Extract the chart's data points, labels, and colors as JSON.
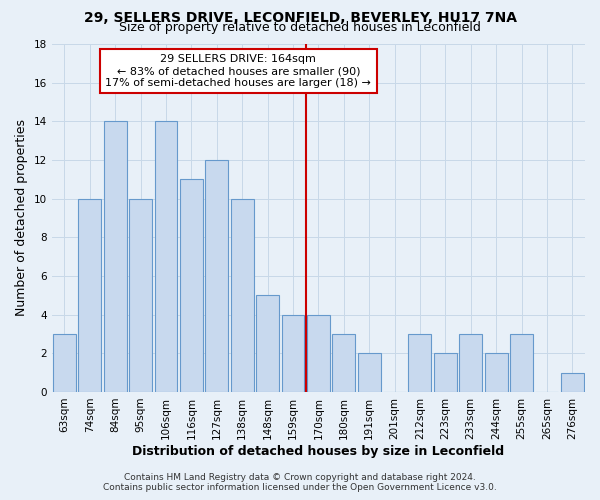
{
  "title": "29, SELLERS DRIVE, LECONFIELD, BEVERLEY, HU17 7NA",
  "subtitle": "Size of property relative to detached houses in Leconfield",
  "xlabel": "Distribution of detached houses by size in Leconfield",
  "ylabel": "Number of detached properties",
  "bar_labels": [
    "63sqm",
    "74sqm",
    "84sqm",
    "95sqm",
    "106sqm",
    "116sqm",
    "127sqm",
    "138sqm",
    "148sqm",
    "159sqm",
    "170sqm",
    "180sqm",
    "191sqm",
    "201sqm",
    "212sqm",
    "223sqm",
    "233sqm",
    "244sqm",
    "255sqm",
    "265sqm",
    "276sqm"
  ],
  "bar_values": [
    3,
    10,
    14,
    10,
    14,
    11,
    12,
    10,
    5,
    4,
    4,
    3,
    2,
    0,
    3,
    2,
    3,
    2,
    3,
    0,
    1
  ],
  "bar_color": "#c8d9ee",
  "bar_edge_color": "#6699cc",
  "vline_x": 9.5,
  "vline_color": "#cc0000",
  "annotation_text": "29 SELLERS DRIVE: 164sqm\n← 83% of detached houses are smaller (90)\n17% of semi-detached houses are larger (18) →",
  "annotation_box_color": "#cc0000",
  "annotation_bg_color": "#ffffff",
  "ylim": [
    0,
    18
  ],
  "yticks": [
    0,
    2,
    4,
    6,
    8,
    10,
    12,
    14,
    16,
    18
  ],
  "grid_color": "#c8d8e8",
  "background_color": "#e8f0f8",
  "footer_line1": "Contains HM Land Registry data © Crown copyright and database right 2024.",
  "footer_line2": "Contains public sector information licensed under the Open Government Licence v3.0.",
  "title_fontsize": 10,
  "subtitle_fontsize": 9,
  "xlabel_fontsize": 9,
  "ylabel_fontsize": 9,
  "tick_fontsize": 7.5,
  "annotation_fontsize": 8,
  "footer_fontsize": 6.5
}
